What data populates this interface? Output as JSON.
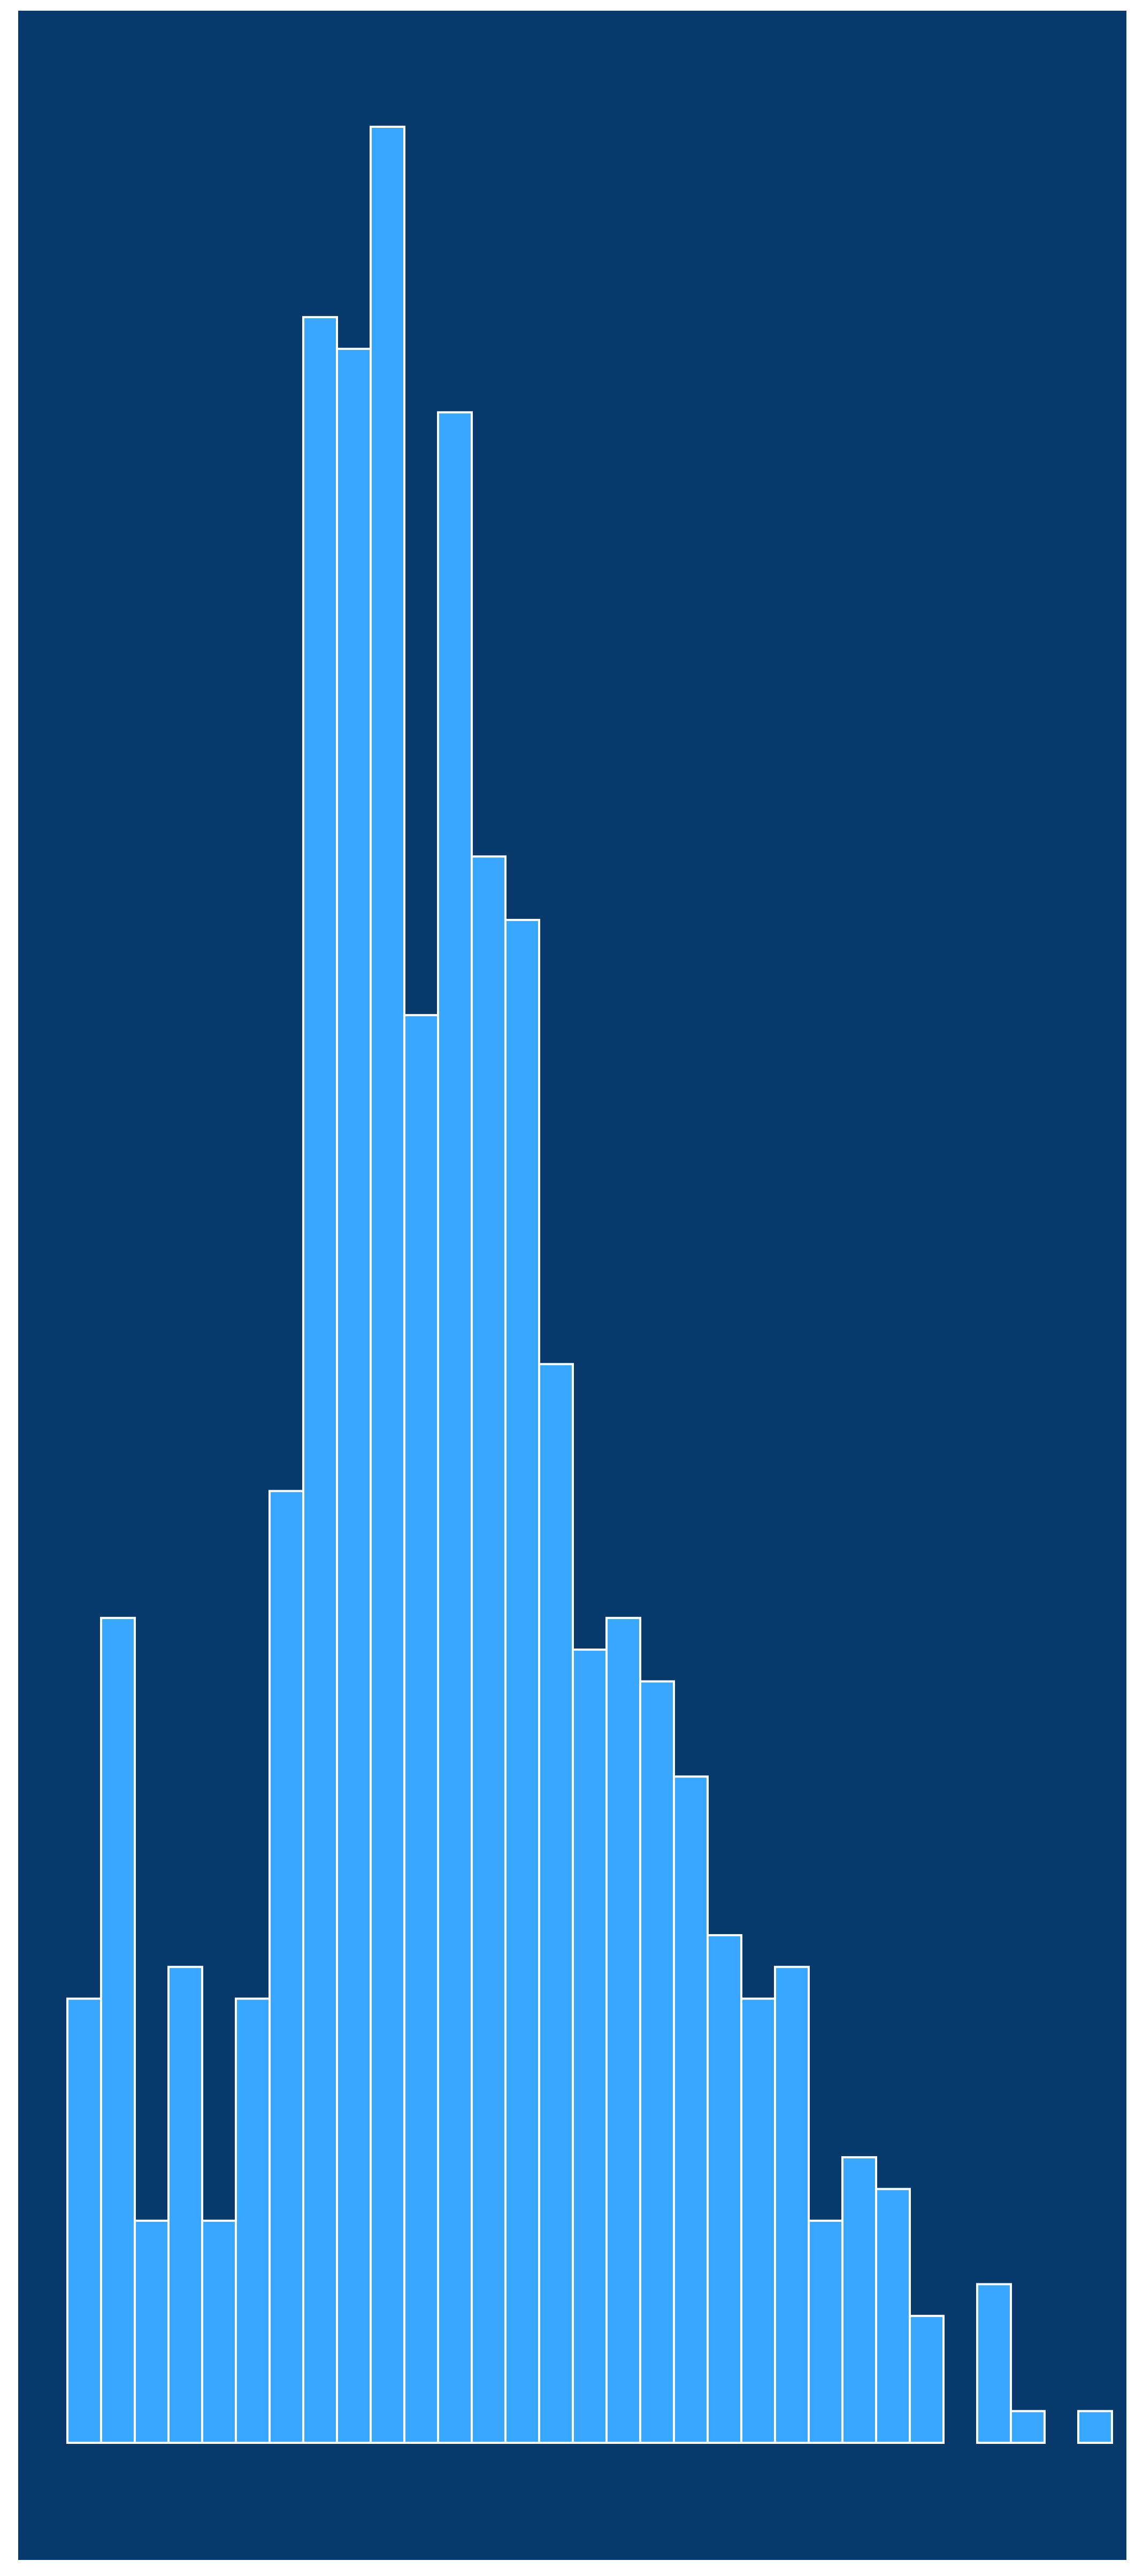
{
  "chart_data": {
    "type": "bar",
    "title": "",
    "xlabel": "",
    "ylabel": "",
    "values": [
      14,
      26,
      7,
      15,
      7,
      14,
      30,
      67,
      66,
      73,
      45,
      64,
      50,
      48,
      34,
      25,
      26,
      24,
      21,
      16,
      14,
      15,
      7,
      9,
      8,
      4,
      0,
      5,
      1,
      0,
      1
    ],
    "ylim": [
      0,
      73
    ],
    "grid": false,
    "legend": "none"
  },
  "colors": {
    "background": "#07396b",
    "bar_fill": "#39a6ff",
    "bar_stroke": "#ffffff",
    "page": "#ffffff"
  }
}
